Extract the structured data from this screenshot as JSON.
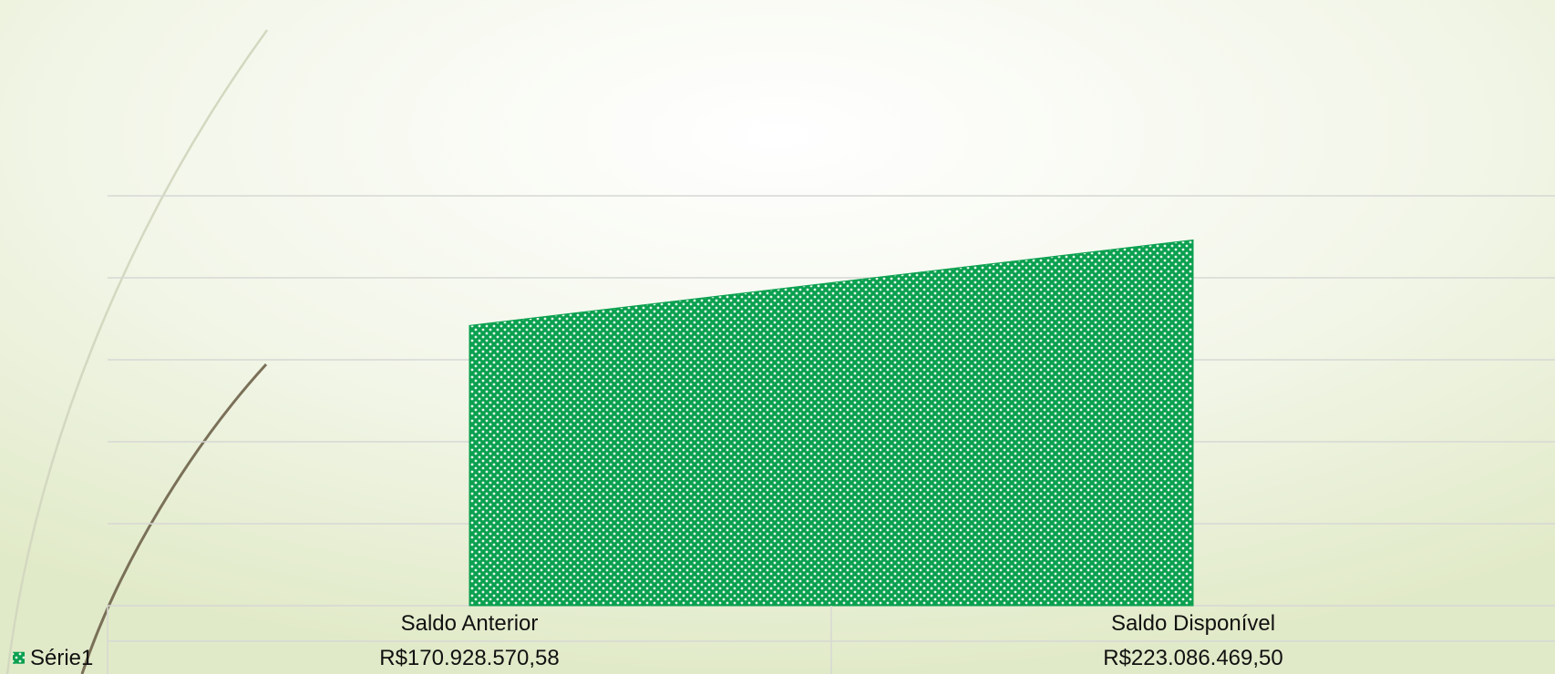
{
  "chart_data": {
    "type": "area",
    "categories": [
      "Saldo Anterior",
      "Saldo Disponível"
    ],
    "series": [
      {
        "name": "Série1",
        "color": "#0aa04f",
        "values": [
          170928570.58,
          223086469.5
        ],
        "value_labels": [
          "R$170.928.570,58",
          "R$223.086.469,50"
        ]
      }
    ],
    "ylim": [
      0,
      250000000
    ],
    "yticks": [
      0,
      50000000,
      100000000,
      150000000,
      200000000,
      250000000
    ],
    "grid": true,
    "data_table": true
  }
}
